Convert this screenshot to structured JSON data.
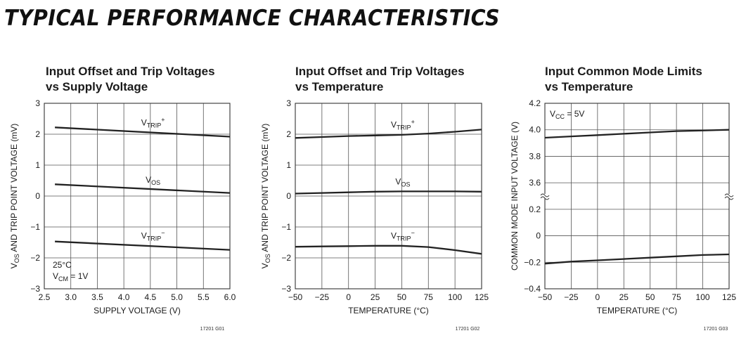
{
  "page": {
    "title": "TYPICAL PERFORMANCE CHARACTERISTICS"
  },
  "chart_data": [
    {
      "type": "line",
      "title": [
        "Input Offset and Trip Voltages",
        "vs Supply Voltage"
      ],
      "xlabel": "SUPPLY VOLTAGE (V)",
      "ylabel": {
        "pre": "V",
        "sub": "OS",
        "post": " AND TRIP POINT VOLTAGE (mV)"
      },
      "xlim": [
        2.5,
        6.0
      ],
      "ylim": [
        -3,
        3
      ],
      "xticks": [
        2.5,
        3.0,
        3.5,
        4.0,
        4.5,
        5.0,
        5.5,
        6.0
      ],
      "xtick_labels": [
        "2.5",
        "3.0",
        "3.5",
        "4.0",
        "4.5",
        "5.0",
        "5.5",
        "6.0"
      ],
      "yticks": [
        -3,
        -2,
        -1,
        0,
        1,
        2,
        3
      ],
      "ytick_labels": [
        "−3",
        "−2",
        "−1",
        "0",
        "1",
        "2",
        "3"
      ],
      "grid": true,
      "series": [
        {
          "name": {
            "pre": "V",
            "sub": "TRIP",
            "sup": "+"
          },
          "x": [
            2.7,
            6.0
          ],
          "y": [
            2.22,
            1.92
          ],
          "label_at": [
            4.55,
            2.28
          ]
        },
        {
          "name": {
            "pre": "V",
            "sub": "OS",
            "sup": ""
          },
          "x": [
            2.7,
            6.0
          ],
          "y": [
            0.38,
            0.1
          ],
          "label_at": [
            4.55,
            0.43
          ]
        },
        {
          "name": {
            "pre": "V",
            "sub": "TRIP",
            "sup": "−"
          },
          "x": [
            2.7,
            6.0
          ],
          "y": [
            -1.47,
            -1.74
          ],
          "label_at": [
            4.55,
            -1.37
          ]
        }
      ],
      "annotation": [
        {
          "pre": "25°C",
          "sub": "",
          "post": ""
        },
        {
          "pre": "V",
          "sub": "CM",
          "post": " = 1V"
        }
      ],
      "figure_id": "17201 G01"
    },
    {
      "type": "line",
      "title": [
        "Input Offset and Trip Voltages",
        "vs Temperature"
      ],
      "xlabel": "TEMPERATURE (°C)",
      "ylabel": {
        "pre": "V",
        "sub": "OS",
        "post": " AND TRIP POINT VOLTAGE (mV)"
      },
      "xlim": [
        -50,
        125
      ],
      "ylim": [
        -3,
        3
      ],
      "xticks": [
        -50,
        -25,
        0,
        25,
        50,
        75,
        100,
        125
      ],
      "xtick_labels": [
        "−50",
        "−25",
        "0",
        "25",
        "50",
        "75",
        "100",
        "125"
      ],
      "yticks": [
        -3,
        -2,
        -1,
        0,
        1,
        2,
        3
      ],
      "ytick_labels": [
        "−3",
        "−2",
        "−1",
        "0",
        "1",
        "2",
        "3"
      ],
      "grid": true,
      "series": [
        {
          "name": {
            "pre": "V",
            "sub": "TRIP",
            "sup": "+"
          },
          "x": [
            -50,
            -25,
            0,
            25,
            50,
            75,
            100,
            125
          ],
          "y": [
            1.88,
            1.91,
            1.94,
            1.96,
            1.98,
            2.02,
            2.08,
            2.15
          ],
          "label_at": [
            51,
            2.22
          ]
        },
        {
          "name": {
            "pre": "V",
            "sub": "OS",
            "sup": ""
          },
          "x": [
            -50,
            -25,
            0,
            25,
            50,
            75,
            100,
            125
          ],
          "y": [
            0.08,
            0.1,
            0.12,
            0.14,
            0.15,
            0.15,
            0.15,
            0.14
          ],
          "label_at": [
            51,
            0.37
          ]
        },
        {
          "name": {
            "pre": "V",
            "sub": "TRIP",
            "sup": "−"
          },
          "x": [
            -50,
            -25,
            0,
            25,
            50,
            75,
            100,
            125
          ],
          "y": [
            -1.64,
            -1.63,
            -1.62,
            -1.61,
            -1.61,
            -1.65,
            -1.75,
            -1.87
          ],
          "label_at": [
            51,
            -1.37
          ]
        }
      ],
      "annotation": [],
      "figure_id": "17201 G02"
    },
    {
      "type": "line",
      "title": [
        "Input Common Mode Limits",
        "vs Temperature"
      ],
      "xlabel": "TEMPERATURE (°C)",
      "ylabel": {
        "pre": "",
        "sub": "",
        "post": "COMMON MODE INPUT VOLTAGE (V)"
      },
      "xlim": [
        -50,
        125
      ],
      "y_display": "broken axis, upper segment 3.6 to 4.2 V, lower segment −0.4 to 0.2 V",
      "yticks": [
        -0.4,
        -0.2,
        0,
        0.2,
        3.6,
        3.8,
        4.0,
        4.2
      ],
      "ytick_labels": [
        "−0.4",
        "−0.2",
        "0",
        "0.2",
        "3.6",
        "3.8",
        "4.0",
        "4.2"
      ],
      "xticks": [
        -50,
        -25,
        0,
        25,
        50,
        75,
        100,
        125
      ],
      "xtick_labels": [
        "−50",
        "−25",
        "0",
        "25",
        "50",
        "75",
        "100",
        "125"
      ],
      "grid": true,
      "series": [
        {
          "name": "",
          "x": [
            -50,
            -25,
            0,
            25,
            50,
            75,
            100,
            125
          ],
          "y": [
            3.94,
            3.95,
            3.96,
            3.97,
            3.98,
            3.99,
            3.995,
            4.0
          ]
        },
        {
          "name": "",
          "x": [
            -50,
            -25,
            0,
            25,
            50,
            75,
            100,
            125
          ],
          "y": [
            -0.21,
            -0.195,
            -0.185,
            -0.175,
            -0.165,
            -0.155,
            -0.145,
            -0.14
          ]
        }
      ],
      "annotation": [
        {
          "pre": "V",
          "sub": "CC",
          "post": " = 5V"
        }
      ],
      "figure_id": "17201 G03"
    }
  ]
}
